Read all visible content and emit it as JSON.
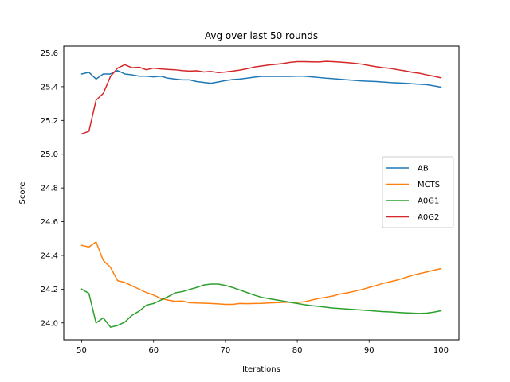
{
  "chart_data": {
    "type": "line",
    "title": "Avg over last 50 rounds",
    "xlabel": "Iterations",
    "ylabel": "Score",
    "xlim": [
      47.5,
      102.5
    ],
    "ylim": [
      23.9,
      25.64
    ],
    "xticks": [
      50,
      60,
      70,
      80,
      90,
      100
    ],
    "yticks": [
      24.0,
      24.2,
      24.4,
      24.6,
      24.8,
      25.0,
      25.2,
      25.4,
      25.6
    ],
    "grid": false,
    "legend_position": "center-right",
    "x": [
      50,
      51,
      52,
      53,
      54,
      55,
      56,
      57,
      58,
      59,
      60,
      61,
      62,
      63,
      64,
      65,
      66,
      67,
      68,
      69,
      70,
      71,
      72,
      73,
      74,
      75,
      76,
      77,
      78,
      79,
      80,
      81,
      82,
      83,
      84,
      85,
      86,
      87,
      88,
      89,
      90,
      91,
      92,
      93,
      94,
      95,
      96,
      97,
      98,
      99,
      100
    ],
    "series": [
      {
        "name": "AB",
        "color": "#1f77b4",
        "values": [
          25.475,
          25.485,
          25.445,
          25.475,
          25.475,
          25.495,
          25.475,
          25.47,
          25.462,
          25.462,
          25.458,
          25.462,
          25.45,
          25.445,
          25.44,
          25.44,
          25.43,
          25.425,
          25.42,
          25.428,
          25.436,
          25.442,
          25.445,
          25.45,
          25.456,
          25.461,
          25.461,
          25.461,
          25.461,
          25.461,
          25.462,
          25.462,
          25.458,
          25.454,
          25.45,
          25.447,
          25.444,
          25.44,
          25.437,
          25.434,
          25.432,
          25.43,
          25.427,
          25.424,
          25.422,
          25.42,
          25.417,
          25.414,
          25.412,
          25.405,
          25.397
        ]
      },
      {
        "name": "MCTS",
        "color": "#ff7f0e",
        "values": [
          24.46,
          24.45,
          24.48,
          24.37,
          24.33,
          24.25,
          24.24,
          24.22,
          24.2,
          24.18,
          24.165,
          24.145,
          24.135,
          24.128,
          24.13,
          24.12,
          24.118,
          24.117,
          24.115,
          24.113,
          24.11,
          24.11,
          24.115,
          24.114,
          24.115,
          24.116,
          24.118,
          24.12,
          24.122,
          24.122,
          24.122,
          24.125,
          24.135,
          24.145,
          24.152,
          24.16,
          24.172,
          24.178,
          24.188,
          24.198,
          24.21,
          24.222,
          24.235,
          24.245,
          24.255,
          24.268,
          24.282,
          24.292,
          24.302,
          24.312,
          24.322
        ]
      },
      {
        "name": "A0G1",
        "color": "#2ca02c",
        "values": [
          24.2,
          24.175,
          24.0,
          24.03,
          23.975,
          23.985,
          24.005,
          24.045,
          24.07,
          24.105,
          24.115,
          24.135,
          24.155,
          24.178,
          24.185,
          24.198,
          24.21,
          24.225,
          24.23,
          24.23,
          24.222,
          24.21,
          24.195,
          24.18,
          24.165,
          24.152,
          24.144,
          24.137,
          24.13,
          24.122,
          24.115,
          24.108,
          24.102,
          24.098,
          24.093,
          24.088,
          24.085,
          24.082,
          24.079,
          24.076,
          24.073,
          24.07,
          24.067,
          24.065,
          24.062,
          24.06,
          24.058,
          24.056,
          24.058,
          24.064,
          24.072
        ]
      },
      {
        "name": "A0G2",
        "color": "#d62728",
        "values": [
          25.12,
          25.135,
          25.32,
          25.36,
          25.46,
          25.51,
          25.53,
          25.512,
          25.515,
          25.5,
          25.51,
          25.505,
          25.502,
          25.5,
          25.495,
          25.492,
          25.494,
          25.487,
          25.49,
          25.483,
          25.487,
          25.492,
          25.498,
          25.506,
          25.516,
          25.522,
          25.528,
          25.532,
          25.537,
          25.544,
          25.548,
          25.548,
          25.547,
          25.546,
          25.55,
          25.548,
          25.545,
          25.542,
          25.538,
          25.533,
          25.525,
          25.518,
          25.512,
          25.508,
          25.5,
          25.493,
          25.485,
          25.479,
          25.47,
          25.462,
          25.452
        ]
      }
    ]
  }
}
